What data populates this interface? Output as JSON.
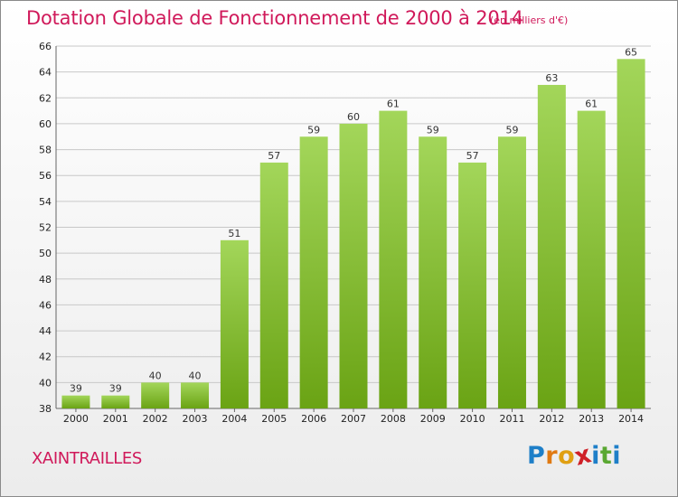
{
  "header": {
    "title": "Dotation Globale de Fonctionnement de 2000 à 2014",
    "subtitle": "(en milliers d'€)"
  },
  "footer": {
    "commune": "XAINTRAILLES",
    "logo_letters": [
      "P",
      "r",
      "o",
      "x",
      "i",
      "t",
      "i"
    ]
  },
  "colors": {
    "title": "#d0195a",
    "bar_light": "#a3d65a",
    "bar_dark": "#6aa314",
    "grid": "#c8c8c8",
    "logo": [
      "#1e7fc8",
      "#e07a12",
      "#e0a012",
      "#cf2027",
      "#1e7fc8",
      "#5aa832",
      "#1e7fc8"
    ]
  },
  "chart_data": {
    "type": "bar",
    "title": "Dotation Globale de Fonctionnement de 2000 à 2014",
    "subtitle": "(en milliers d'€)",
    "xlabel": "",
    "ylabel": "",
    "categories": [
      "2000",
      "2001",
      "2002",
      "2003",
      "2004",
      "2005",
      "2006",
      "2007",
      "2008",
      "2009",
      "2010",
      "2011",
      "2012",
      "2013",
      "2014"
    ],
    "values": [
      39,
      39,
      40,
      40,
      51,
      57,
      59,
      60,
      61,
      59,
      57,
      59,
      63,
      61,
      65
    ],
    "ylim": [
      38,
      66
    ],
    "yticks": [
      38,
      40,
      42,
      44,
      46,
      48,
      50,
      52,
      54,
      56,
      58,
      60,
      62,
      64,
      66
    ],
    "grid": true,
    "legend": "none"
  }
}
